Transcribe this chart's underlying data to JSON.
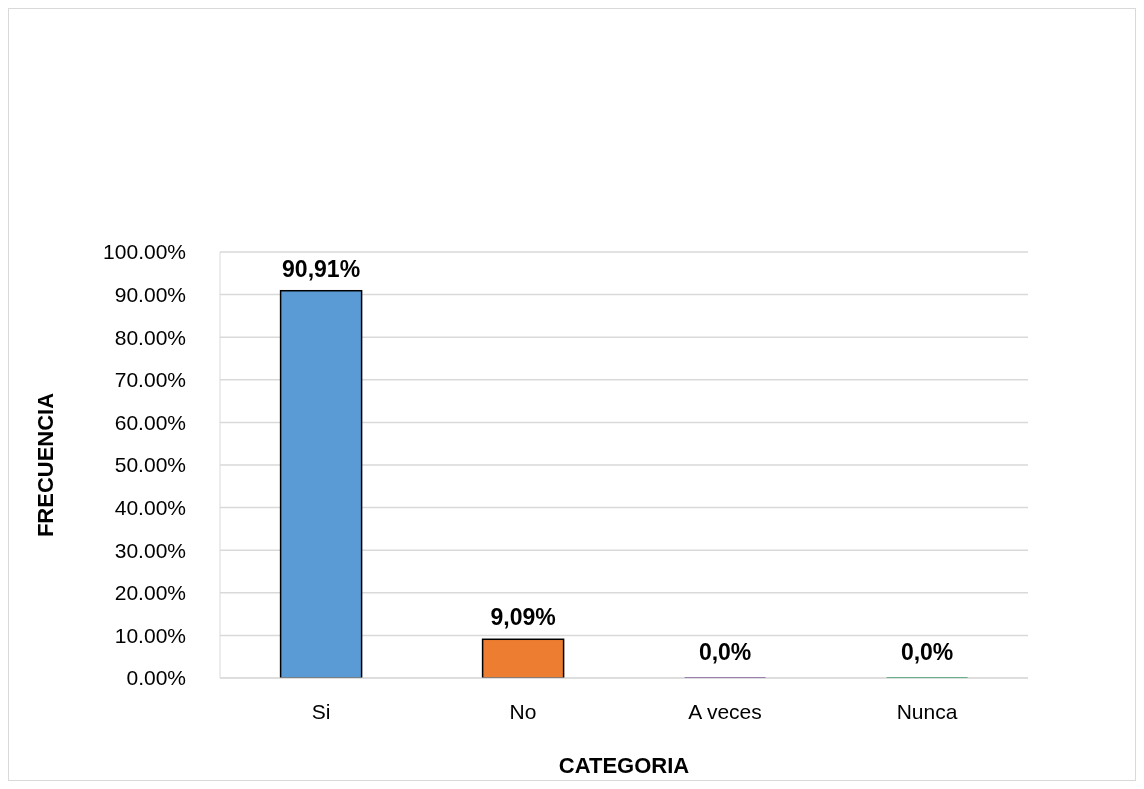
{
  "chart_data": {
    "type": "bar",
    "categories": [
      "Si",
      "No",
      "A veces",
      "Nunca"
    ],
    "values": [
      90.91,
      9.09,
      0,
      0
    ],
    "colors": [
      "#5b9bd5",
      "#ed7d31",
      "#5b2483",
      "#00843d"
    ],
    "value_labels": [
      "90,91%",
      "9,09%",
      "0,0%",
      "0,0%"
    ],
    "xlabel": "CATEGORIA",
    "ylabel": "FRECUENCIA",
    "ylim": [
      0,
      100
    ],
    "yticks": [
      {
        "value": 0,
        "label": "0.00%"
      },
      {
        "value": 10,
        "label": "10.00%"
      },
      {
        "value": 20,
        "label": "20.00%"
      },
      {
        "value": 30,
        "label": "30.00%"
      },
      {
        "value": 40,
        "label": "40.00%"
      },
      {
        "value": 50,
        "label": "50.00%"
      },
      {
        "value": 60,
        "label": "60.00%"
      },
      {
        "value": 70,
        "label": "70.00%"
      },
      {
        "value": 80,
        "label": "80.00%"
      },
      {
        "value": 90,
        "label": "90.00%"
      },
      {
        "value": 100,
        "label": "100.00%"
      }
    ],
    "grid": "y"
  }
}
